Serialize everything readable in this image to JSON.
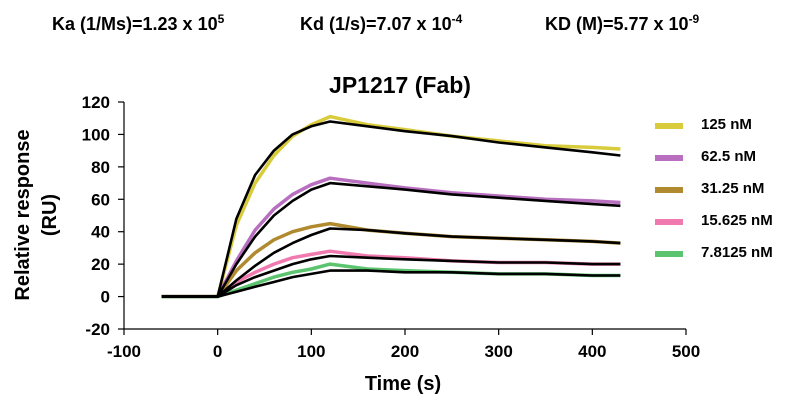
{
  "header": {
    "ka": {
      "label": "Ka (1/Ms)=1.23 x 10",
      "exp": "5"
    },
    "kd": {
      "label": "Kd (1/s)=7.07 x 10",
      "exp": "-4"
    },
    "kD": {
      "label": "KD (M)=5.77 x 10",
      "exp": "-9"
    }
  },
  "chart_data": {
    "type": "line",
    "title": "JP1217 (Fab)",
    "xlabel": "Time (s)",
    "ylabel": "Relative response (RU)",
    "xlim": [
      -100,
      500
    ],
    "ylim": [
      -20,
      120
    ],
    "xticks": [
      -100,
      0,
      100,
      200,
      300,
      400,
      500
    ],
    "yticks": [
      -20,
      0,
      20,
      40,
      60,
      80,
      100,
      120
    ],
    "grid": false,
    "legend_position": "right",
    "fit_color": "#000000",
    "series": [
      {
        "name": "125 nM",
        "color": "#D9CC3C",
        "observed": {
          "x": [
            -60,
            0,
            20,
            40,
            60,
            80,
            100,
            120,
            160,
            200,
            250,
            300,
            350,
            400,
            430
          ],
          "y": [
            0,
            0,
            44,
            70,
            87,
            99,
            106,
            111,
            106,
            103,
            99,
            96,
            93,
            92,
            91
          ]
        },
        "fit": {
          "x": [
            -60,
            0,
            20,
            40,
            60,
            80,
            100,
            120,
            160,
            200,
            250,
            300,
            350,
            400,
            430
          ],
          "y": [
            0,
            0,
            48,
            75,
            90,
            100,
            105,
            108,
            105,
            102,
            99,
            95,
            92,
            89,
            87
          ]
        }
      },
      {
        "name": "62.5 nM",
        "color": "#B86FBF",
        "observed": {
          "x": [
            -60,
            0,
            20,
            40,
            60,
            80,
            100,
            120,
            160,
            200,
            250,
            300,
            350,
            400,
            430
          ],
          "y": [
            0,
            0,
            22,
            41,
            54,
            63,
            69,
            73,
            70,
            67,
            64,
            62,
            60,
            59,
            58
          ]
        },
        "fit": {
          "x": [
            -60,
            0,
            20,
            40,
            60,
            80,
            100,
            120,
            160,
            200,
            250,
            300,
            350,
            400,
            430
          ],
          "y": [
            0,
            0,
            20,
            37,
            50,
            59,
            66,
            70,
            68,
            66,
            63,
            61,
            59,
            57,
            56
          ]
        }
      },
      {
        "name": "31.25 nM",
        "color": "#B08A2E",
        "observed": {
          "x": [
            -60,
            0,
            20,
            40,
            60,
            80,
            100,
            120,
            160,
            200,
            250,
            300,
            350,
            400,
            430
          ],
          "y": [
            0,
            0,
            16,
            27,
            35,
            40,
            43,
            45,
            41,
            39,
            37,
            36,
            35,
            34,
            33
          ]
        },
        "fit": {
          "x": [
            -60,
            0,
            20,
            40,
            60,
            80,
            100,
            120,
            160,
            200,
            250,
            300,
            350,
            400,
            430
          ],
          "y": [
            0,
            0,
            10,
            19,
            27,
            33,
            38,
            42,
            41,
            39,
            37,
            36,
            35,
            34,
            33
          ]
        }
      },
      {
        "name": "15.625 nM",
        "color": "#F07AAF",
        "observed": {
          "x": [
            -60,
            0,
            20,
            40,
            60,
            80,
            100,
            120,
            160,
            200,
            250,
            300,
            350,
            400,
            430
          ],
          "y": [
            0,
            0,
            9,
            15,
            20,
            24,
            26,
            28,
            25,
            24,
            22,
            21,
            21,
            20,
            20
          ]
        },
        "fit": {
          "x": [
            -60,
            0,
            20,
            40,
            60,
            80,
            100,
            120,
            160,
            200,
            250,
            300,
            350,
            400,
            430
          ],
          "y": [
            0,
            0,
            7,
            12,
            16,
            20,
            23,
            25,
            24,
            23,
            22,
            21,
            21,
            20,
            20
          ]
        }
      },
      {
        "name": "7.8125 nM",
        "color": "#5CC46E",
        "observed": {
          "x": [
            -60,
            0,
            20,
            40,
            60,
            80,
            100,
            120,
            160,
            200,
            250,
            300,
            350,
            400,
            430
          ],
          "y": [
            0,
            0,
            4,
            8,
            12,
            15,
            17,
            20,
            17,
            16,
            15,
            14,
            14,
            13,
            13
          ]
        },
        "fit": {
          "x": [
            -60,
            0,
            20,
            40,
            60,
            80,
            100,
            120,
            160,
            200,
            250,
            300,
            350,
            400,
            430
          ],
          "y": [
            0,
            0,
            3,
            6,
            9,
            12,
            14,
            16,
            16,
            15,
            15,
            14,
            14,
            13,
            13
          ]
        }
      }
    ]
  }
}
